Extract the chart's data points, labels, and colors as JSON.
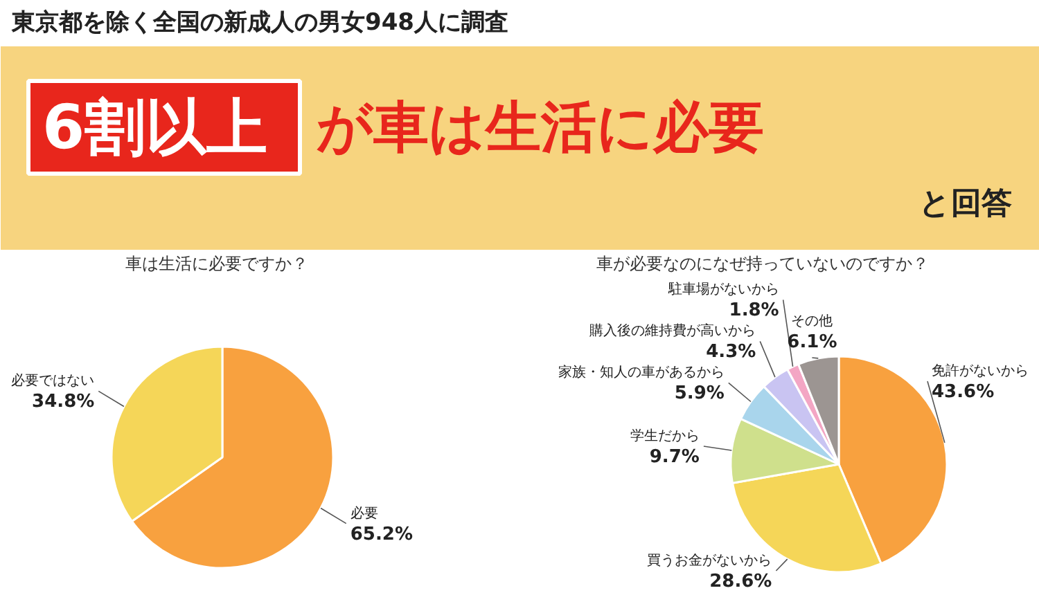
{
  "chart_data": [
    {
      "type": "other",
      "title": "東京都を除く全国の新成人の男女948人に調査",
      "annotations": [
        "6割以上",
        "が車は生活に必要",
        "と回答"
      ]
    },
    {
      "type": "pie",
      "title": "車は生活に必要ですか？",
      "categories": [
        "必要",
        "必要ではない"
      ],
      "values": [
        65.2,
        34.8
      ],
      "colors": [
        "#f8a13f",
        "#f5d658"
      ],
      "value_labels": [
        "65.2%",
        "34.8%"
      ]
    },
    {
      "type": "pie",
      "title": "車が必要なのになぜ持っていないのですか？",
      "categories": [
        "免許がないから",
        "買うお金がないから",
        "学生だから",
        "家族・知人の車があるから",
        "購入後の維持費が高いから",
        "駐車場がないから",
        "その他"
      ],
      "values": [
        43.6,
        28.6,
        9.7,
        5.9,
        4.3,
        1.8,
        6.1
      ],
      "colors": [
        "#f8a13f",
        "#f5d658",
        "#cfe08c",
        "#a9d5ec",
        "#c9c4f2",
        "#f3a6c4",
        "#9c9592"
      ],
      "value_labels": [
        "43.6%",
        "28.6%",
        "9.7%",
        "5.9%",
        "4.3%",
        "1.8%",
        "6.1%"
      ]
    }
  ]
}
